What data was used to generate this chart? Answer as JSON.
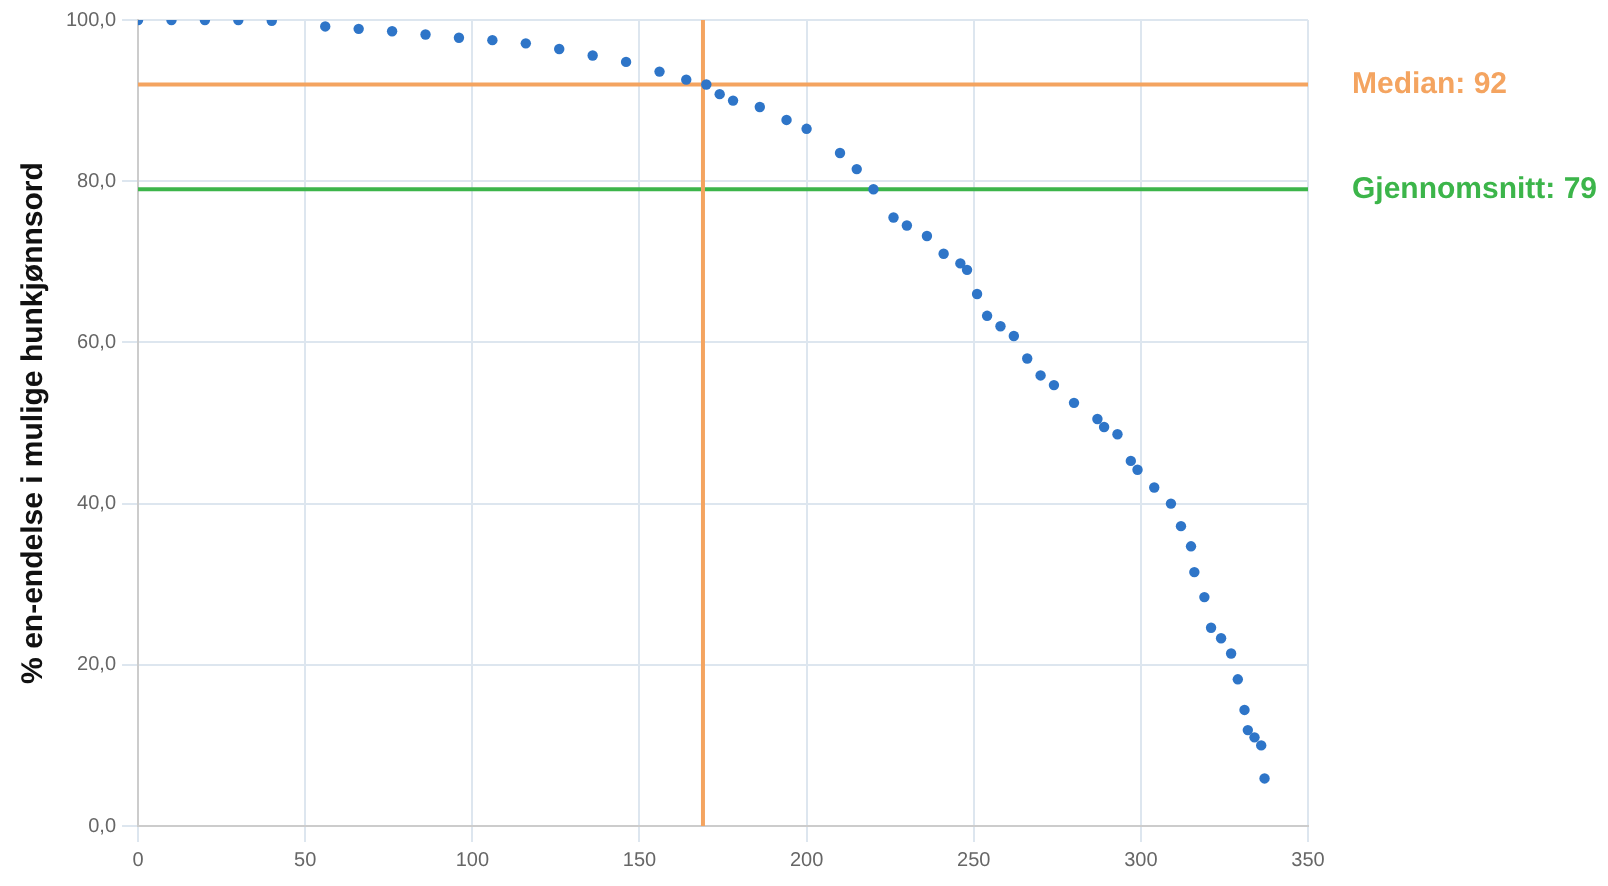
{
  "chart_data": {
    "type": "scatter",
    "ylabel": "% en-endelse i mulige hunkjønnsord",
    "marker": "circle",
    "grid": true,
    "legend": false,
    "xlim": [
      0,
      350
    ],
    "xticks": [
      0,
      50,
      100,
      150,
      200,
      250,
      300,
      350
    ],
    "ylim": [
      0,
      100
    ],
    "yticks": [
      {
        "value": 0,
        "label": "0,0"
      },
      {
        "value": 20,
        "label": "20,0"
      },
      {
        "value": 40,
        "label": "40,0"
      },
      {
        "value": 60,
        "label": "60,0"
      },
      {
        "value": 80,
        "label": "80,0"
      },
      {
        "value": 100,
        "label": "100,0"
      }
    ],
    "series": [
      {
        "color": "#2e75c8",
        "x": [
          0,
          10,
          20,
          30,
          40,
          56,
          66,
          76,
          86,
          96,
          106,
          116,
          126,
          136,
          146,
          156,
          164,
          170,
          174,
          178,
          186,
          194,
          200,
          210,
          215,
          220,
          226,
          230,
          236,
          241,
          246,
          248,
          251,
          254,
          258,
          262,
          266,
          270,
          274,
          280,
          287,
          289,
          293,
          297,
          299,
          304,
          309,
          312,
          315,
          316,
          319,
          321,
          324,
          327,
          329,
          331,
          332,
          334,
          336,
          337
        ],
        "values": [
          100,
          100,
          100,
          100,
          99.9,
          99.2,
          98.9,
          98.6,
          98.2,
          97.8,
          97.5,
          97.1,
          96.4,
          95.6,
          94.8,
          93.6,
          92.6,
          92,
          90.8,
          90,
          89.2,
          87.6,
          86.5,
          83.5,
          81.5,
          79,
          75.5,
          74.5,
          73.2,
          71,
          69.8,
          69,
          66,
          63.3,
          62,
          60.8,
          58,
          55.9,
          54.7,
          52.5,
          50.5,
          49.5,
          48.6,
          45.3,
          44.2,
          42,
          40,
          37.2,
          34.7,
          31.5,
          28.4,
          24.6,
          23.3,
          21.4,
          18.2,
          14.4,
          11.9,
          11,
          10,
          5.9
        ]
      }
    ],
    "ref_lines": [
      {
        "axis": "y",
        "value": 92,
        "label": "Median: 92",
        "color": "#f4a460"
      },
      {
        "axis": "y",
        "value": 79,
        "label": "Gjennomsnitt: 79",
        "color": "#3cb54a"
      },
      {
        "axis": "x",
        "value": 169,
        "color": "#f4a460"
      }
    ]
  }
}
